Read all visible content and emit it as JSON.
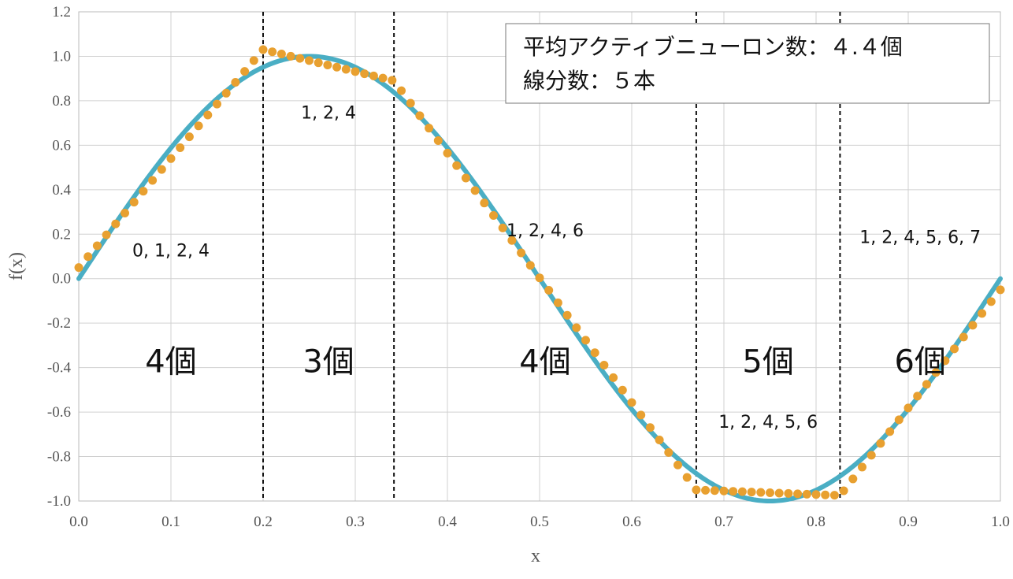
{
  "chart_data": {
    "type": "line",
    "xlabel": "x",
    "ylabel": "f(x)",
    "xlim": [
      0.0,
      1.0
    ],
    "ylim": [
      -1.0,
      1.2
    ],
    "x_ticks": [
      "0.0",
      "0.1",
      "0.2",
      "0.3",
      "0.4",
      "0.5",
      "0.6",
      "0.7",
      "0.8",
      "0.9",
      "1.0"
    ],
    "y_ticks": [
      "1.2",
      "1.0",
      "0.8",
      "0.6",
      "0.4",
      "0.2",
      "0.0",
      "-0.2",
      "-0.4",
      "-0.6",
      "-0.8",
      "-1.0"
    ],
    "grid": true,
    "colors": {
      "true_curve": "#4aaec4",
      "approximation": "#e8a030",
      "boundary": "#111111",
      "grid": "#d0d0d0"
    },
    "series": [
      {
        "style": "line",
        "function": "sin(2*pi*x)",
        "x": [
          0.0,
          0.05,
          0.1,
          0.15,
          0.2,
          0.25,
          0.3,
          0.35,
          0.4,
          0.45,
          0.5,
          0.55,
          0.6,
          0.65,
          0.7,
          0.75,
          0.8,
          0.85,
          0.9,
          0.95,
          1.0
        ],
        "y": [
          0.0,
          0.309,
          0.588,
          0.809,
          0.951,
          1.0,
          0.951,
          0.809,
          0.588,
          0.309,
          0.0,
          -0.309,
          -0.588,
          -0.809,
          -0.951,
          -1.0,
          -0.951,
          -0.809,
          -0.588,
          -0.309,
          0.0
        ]
      },
      {
        "style": "dots",
        "piecewise_linear": true,
        "x": [
          0.0,
          0.2,
          0.342,
          0.67,
          0.826,
          1.0
        ],
        "y": [
          0.05,
          1.03,
          0.89,
          -0.95,
          -0.975,
          -0.05
        ]
      }
    ],
    "segment_boundaries": [
      0.2,
      0.342,
      0.67,
      0.826
    ],
    "segments": [
      {
        "count": "4個",
        "neurons": "0, 1, 2, 4"
      },
      {
        "count": "3個",
        "neurons": "1, 2, 4"
      },
      {
        "count": "4個",
        "neurons": "1, 2, 4, 6"
      },
      {
        "count": "5個",
        "neurons": "1, 2, 4, 5, 6"
      },
      {
        "count": "6個",
        "neurons": "1, 2, 4, 5, 6, 7"
      }
    ],
    "legend": {
      "placement": "top-right",
      "lines": [
        "平均アクティブニューロン数：４.４個",
        "線分数：５本"
      ]
    }
  }
}
